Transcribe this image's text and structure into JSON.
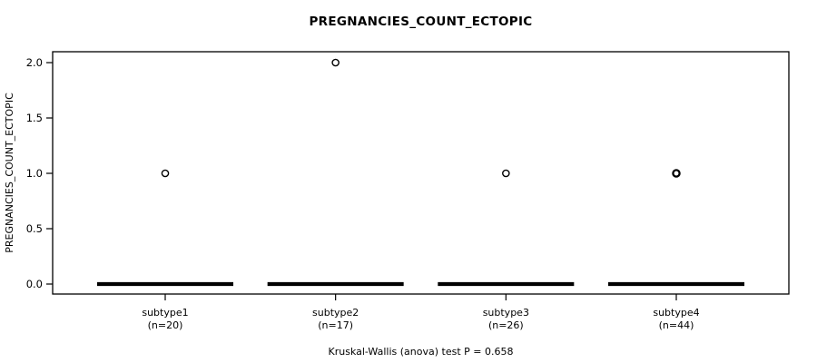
{
  "chart_data": {
    "type": "boxplot",
    "title": "PREGNANCIES_COUNT_ECTOPIC",
    "ylabel": "PREGNANCIES_COUNT_ECTOPIC",
    "footer": "Kruskal-Wallis (anova) test P = 0.658",
    "ylim": [
      0.0,
      2.0
    ],
    "yticks": [
      0.0,
      0.5,
      1.0,
      1.5,
      2.0
    ],
    "grid": false,
    "legend": "none",
    "groups": [
      {
        "label": "subtype1",
        "sublabel": "(n=20)",
        "n": 20,
        "whisker_low": 0,
        "q1": 0,
        "median": 0,
        "q3": 0,
        "whisker_high": 0,
        "outliers": [
          1
        ],
        "outlier_thick": false
      },
      {
        "label": "subtype2",
        "sublabel": "(n=17)",
        "n": 17,
        "whisker_low": 0,
        "q1": 0,
        "median": 0,
        "q3": 0,
        "whisker_high": 0,
        "outliers": [
          2
        ],
        "outlier_thick": false
      },
      {
        "label": "subtype3",
        "sublabel": "(n=26)",
        "n": 26,
        "whisker_low": 0,
        "q1": 0,
        "median": 0,
        "q3": 0,
        "whisker_high": 0,
        "outliers": [
          1
        ],
        "outlier_thick": false
      },
      {
        "label": "subtype4",
        "sublabel": "(n=44)",
        "n": 44,
        "whisker_low": 0,
        "q1": 0,
        "median": 0,
        "q3": 0,
        "whisker_high": 0,
        "outliers": [
          1
        ],
        "outlier_thick": true
      }
    ]
  },
  "colors": {
    "foreground": "#000000",
    "background": "#ffffff"
  }
}
